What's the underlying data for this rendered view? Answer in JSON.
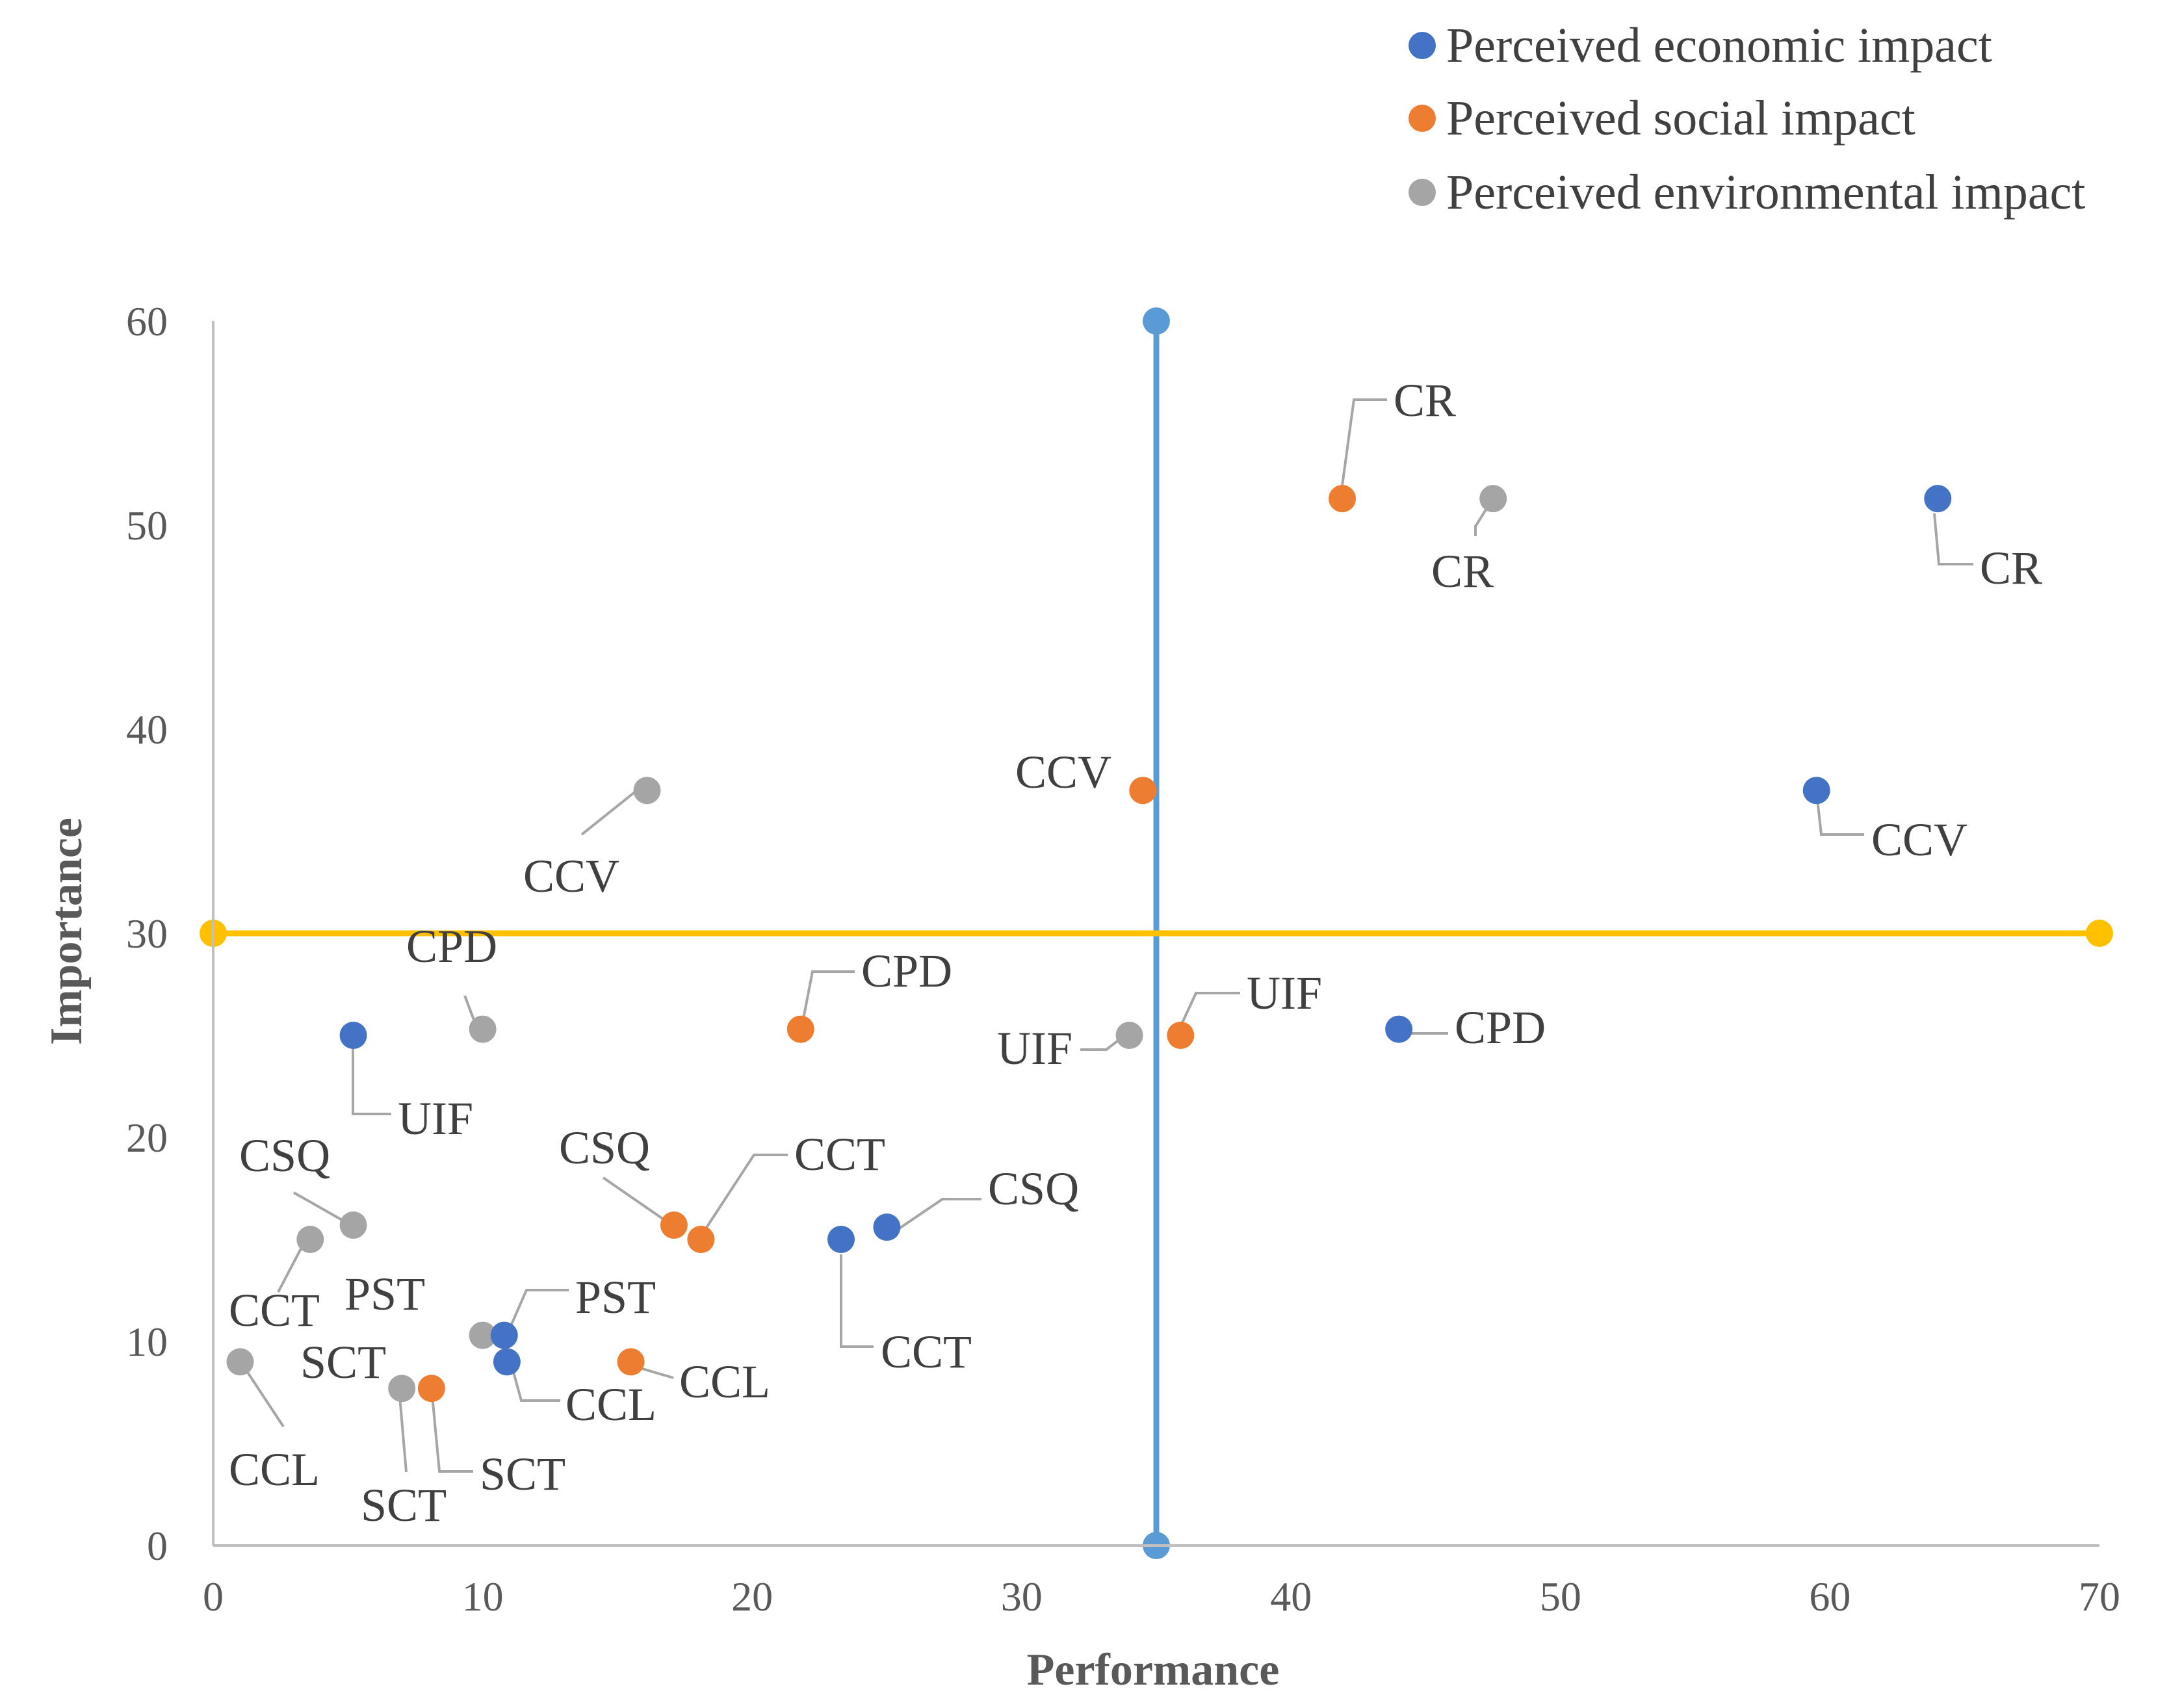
{
  "chart_data": {
    "type": "scatter",
    "title": "",
    "xlabel": "Performance",
    "ylabel": "Importance",
    "xlim": [
      0,
      70
    ],
    "ylim": [
      0,
      60
    ],
    "xticks": [
      0,
      10,
      20,
      30,
      40,
      50,
      60,
      70
    ],
    "yticks": [
      0,
      10,
      20,
      30,
      40,
      50,
      60
    ],
    "grid": false,
    "legend_position": "top-right",
    "colors": {
      "economic": "#4472C4",
      "social": "#ED7D31",
      "environmental": "#A5A5A5",
      "vertical_line": "#5B9BD5",
      "horizontal_line": "#FFC000",
      "axis": "#BFBFBF",
      "leader": "#A6A6A6"
    },
    "series": [
      {
        "name": "Perceived economic impact",
        "key": "economic",
        "points": [
          {
            "label": "CR",
            "x": 64,
            "y": 51.3
          },
          {
            "label": "CCV",
            "x": 59.5,
            "y": 37
          },
          {
            "label": "CPD",
            "x": 44,
            "y": 25.3
          },
          {
            "label": "CSQ",
            "x": 25,
            "y": 15.6
          },
          {
            "label": "CCT",
            "x": 23.3,
            "y": 15
          },
          {
            "label": "UIF",
            "x": 5.2,
            "y": 25
          },
          {
            "label": "PST",
            "x": 10.8,
            "y": 10.3
          },
          {
            "label": "CCL",
            "x": 10.9,
            "y": 9
          }
        ]
      },
      {
        "name": "Perceived social impact",
        "key": "social",
        "points": [
          {
            "label": "CR",
            "x": 41.9,
            "y": 51.3
          },
          {
            "label": "CCV",
            "x": 34.5,
            "y": 37
          },
          {
            "label": "UIF",
            "x": 35.9,
            "y": 25
          },
          {
            "label": "CPD",
            "x": 21.8,
            "y": 25.3
          },
          {
            "label": "CSQ",
            "x": 17.1,
            "y": 15.7
          },
          {
            "label": "CCT",
            "x": 18.1,
            "y": 15
          },
          {
            "label": "CCL",
            "x": 15.5,
            "y": 9
          },
          {
            "label": "SCT",
            "x": 8.1,
            "y": 7.7
          }
        ]
      },
      {
        "name": "Perceived environmental impact",
        "key": "environmental",
        "points": [
          {
            "label": "CR",
            "x": 47.5,
            "y": 51.3
          },
          {
            "label": "CCV",
            "x": 16.1,
            "y": 37
          },
          {
            "label": "CPD",
            "x": 10,
            "y": 25.3
          },
          {
            "label": "UIF",
            "x": 34,
            "y": 25
          },
          {
            "label": "CSQ",
            "x": 5.2,
            "y": 15.7
          },
          {
            "label": "CCT",
            "x": 3.6,
            "y": 15
          },
          {
            "label": "PST",
            "x": 10,
            "y": 10.3
          },
          {
            "label": "SCT",
            "x": 7,
            "y": 7.7
          },
          {
            "label": "CCL",
            "x": 1,
            "y": 9
          }
        ]
      }
    ],
    "reference_lines": [
      {
        "orientation": "vertical",
        "x": 35,
        "y_from": 0,
        "y_to": 60
      },
      {
        "orientation": "horizontal",
        "y": 30,
        "x_from": 0,
        "x_to": 70
      }
    ]
  }
}
